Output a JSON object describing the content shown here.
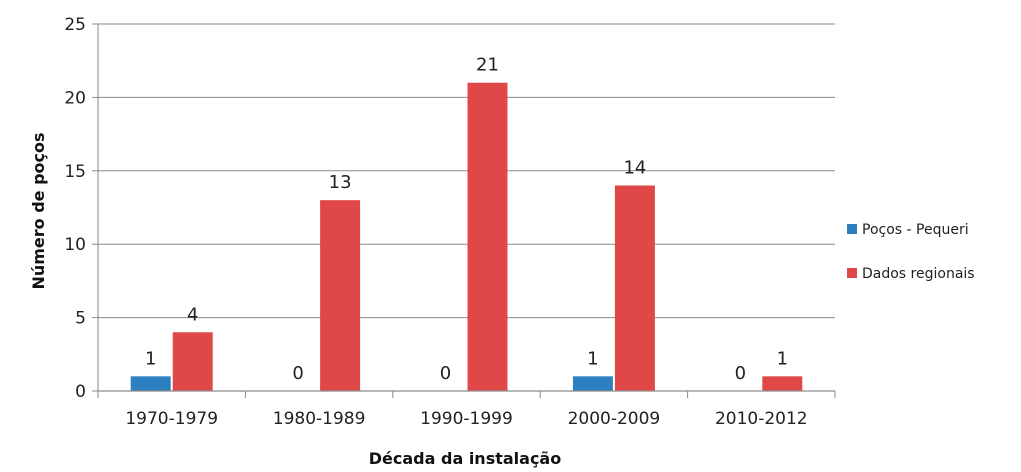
{
  "chart_data": {
    "type": "bar",
    "title": "",
    "xlabel": "Década da instalação",
    "ylabel": "Número de poços",
    "categories": [
      "1970-1979",
      "1980-1989",
      "1990-1999",
      "2000-2009",
      "2010-2012"
    ],
    "series": [
      {
        "name": "Poços - Pequeri",
        "values": [
          1,
          0,
          0,
          1,
          0
        ],
        "color": "#2e7fc0"
      },
      {
        "name": "Dados regionais",
        "values": [
          4,
          13,
          21,
          14,
          1
        ],
        "color": "#e04848"
      }
    ],
    "ylim": [
      0,
      25
    ],
    "yticks": [
      0,
      5,
      10,
      15,
      20,
      25
    ],
    "grid": true,
    "legend": "right",
    "data_labels": true
  }
}
